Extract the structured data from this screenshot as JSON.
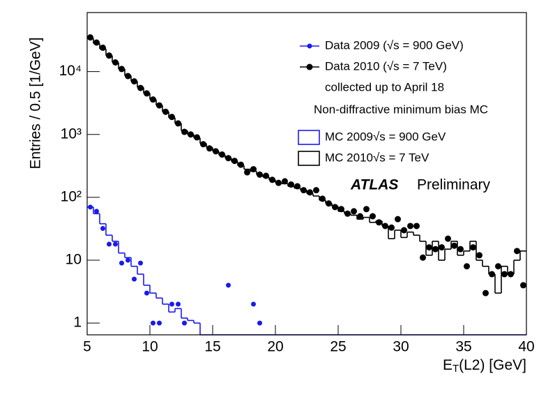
{
  "chart_data": {
    "type": "hist_points",
    "y_label": "Entries / 0.5 [1/GeV]",
    "x_label": [
      "E",
      "T",
      "(L2) [GeV]"
    ],
    "log_y": true,
    "xlim": [
      5,
      40
    ],
    "xticks": [
      5,
      10,
      15,
      20,
      25,
      30,
      35,
      40
    ],
    "ylim": [
      0.65,
      87000
    ],
    "yticks": [
      1,
      10,
      {
        "value": 100,
        "label": "10²"
      },
      {
        "value": 1000,
        "label": "10³"
      },
      {
        "value": 10000,
        "label": "10⁴"
      }
    ],
    "annotations": {
      "collected": "collected up to April 18",
      "mc_header": "Non-diffractive minimum bias MC",
      "atlas": "ATLAS",
      "preliminary": "Preliminary"
    },
    "points": [
      {
        "name": "Data 2009 (√s = 900 GeV)",
        "color": "#1a1aee",
        "x": [
          5.25,
          5.75,
          6.25,
          6.75,
          7.25,
          7.75,
          8.25,
          8.75,
          9.25,
          9.75,
          10.25,
          10.75,
          11.75,
          12.25,
          12.75,
          16.25,
          18.25,
          18.75
        ],
        "values": [
          70,
          60,
          32,
          18,
          18,
          9,
          10,
          5,
          9,
          3,
          1,
          1,
          2,
          2,
          1,
          4,
          2,
          1
        ]
      },
      {
        "name": "Data 2010 (√s = 7 TeV)",
        "color": "#000000",
        "x": [
          5.25,
          5.75,
          6.25,
          6.75,
          7.25,
          7.75,
          8.25,
          8.75,
          9.25,
          9.75,
          10.25,
          10.75,
          11.25,
          11.75,
          12.25,
          12.75,
          13.25,
          13.75,
          14.25,
          14.75,
          15.25,
          15.75,
          16.25,
          16.75,
          17.25,
          17.75,
          18.25,
          18.75,
          19.25,
          19.75,
          20.25,
          20.75,
          21.25,
          21.75,
          22.25,
          22.75,
          23.25,
          23.75,
          24.25,
          24.75,
          25.25,
          25.75,
          26.25,
          26.75,
          27.25,
          27.75,
          28.25,
          28.75,
          29.25,
          29.75,
          30.25,
          30.75,
          31.25,
          31.75,
          32.25,
          32.75,
          33.25,
          33.75,
          34.25,
          34.75,
          35.25,
          35.75,
          36.25,
          36.75,
          37.25,
          37.75,
          38.25,
          38.75,
          39.25,
          39.75
        ],
        "values": [
          35000,
          29000,
          24000,
          18000,
          14000,
          11000,
          8500,
          7000,
          5500,
          4500,
          3600,
          2900,
          2300,
          1900,
          1500,
          1100,
          1000,
          900,
          700,
          600,
          540,
          480,
          420,
          380,
          330,
          250,
          280,
          230,
          220,
          190,
          170,
          180,
          160,
          150,
          130,
          120,
          130,
          95,
          80,
          70,
          65,
          55,
          60,
          50,
          65,
          50,
          40,
          35,
          33,
          45,
          30,
          35,
          35,
          11,
          16,
          15,
          16,
          22,
          17,
          15,
          8,
          16,
          12,
          3,
          6,
          8,
          6,
          6,
          14,
          4
        ]
      }
    ],
    "histograms": [
      {
        "name": "MC 2009√s = 900 GeV",
        "color": "#1a1aee",
        "bins": [
          5,
          5.5,
          6,
          6.5,
          7,
          7.5,
          8,
          8.5,
          9,
          9.5,
          10,
          10.5,
          11,
          11.5,
          12,
          12.5,
          13,
          13.5,
          14,
          40
        ],
        "values": [
          70,
          55,
          38,
          25,
          20,
          13,
          11,
          8,
          6,
          4,
          3,
          2.5,
          2,
          1.5,
          1.7,
          1.2,
          1.1,
          1,
          0
        ]
      },
      {
        "name": "MC 2010√s = 7 TeV",
        "color": "#000000",
        "bins": [
          5,
          5.5,
          6,
          6.5,
          7,
          7.5,
          8,
          8.5,
          9,
          9.5,
          10,
          10.5,
          11,
          11.5,
          12,
          12.5,
          13,
          13.5,
          14,
          14.5,
          15,
          15.5,
          16,
          16.5,
          17,
          17.5,
          18,
          18.5,
          19,
          19.5,
          20,
          20.5,
          21,
          21.5,
          22,
          22.5,
          23,
          23.5,
          24,
          24.5,
          25,
          25.5,
          26,
          26.5,
          27,
          27.5,
          28,
          28.5,
          29,
          29.5,
          30,
          30.5,
          31,
          31.5,
          32,
          32.5,
          33,
          33.5,
          34,
          34.5,
          35,
          35.5,
          36,
          36.5,
          37,
          37.5,
          38,
          38.5,
          39,
          39.5,
          40
        ],
        "values": [
          34000,
          28000,
          23000,
          18000,
          14000,
          11000,
          8600,
          7000,
          5600,
          4500,
          3600,
          2900,
          2300,
          1850,
          1500,
          1150,
          1000,
          880,
          720,
          620,
          540,
          470,
          420,
          370,
          320,
          280,
          260,
          230,
          210,
          190,
          170,
          165,
          150,
          140,
          130,
          115,
          105,
          90,
          80,
          72,
          60,
          55,
          52,
          45,
          48,
          40,
          42,
          35,
          22,
          30,
          23,
          28,
          25,
          20,
          12,
          20,
          10,
          15,
          20,
          12,
          14,
          20,
          10,
          8,
          6,
          3,
          8,
          6,
          10,
          14
        ]
      }
    ]
  }
}
